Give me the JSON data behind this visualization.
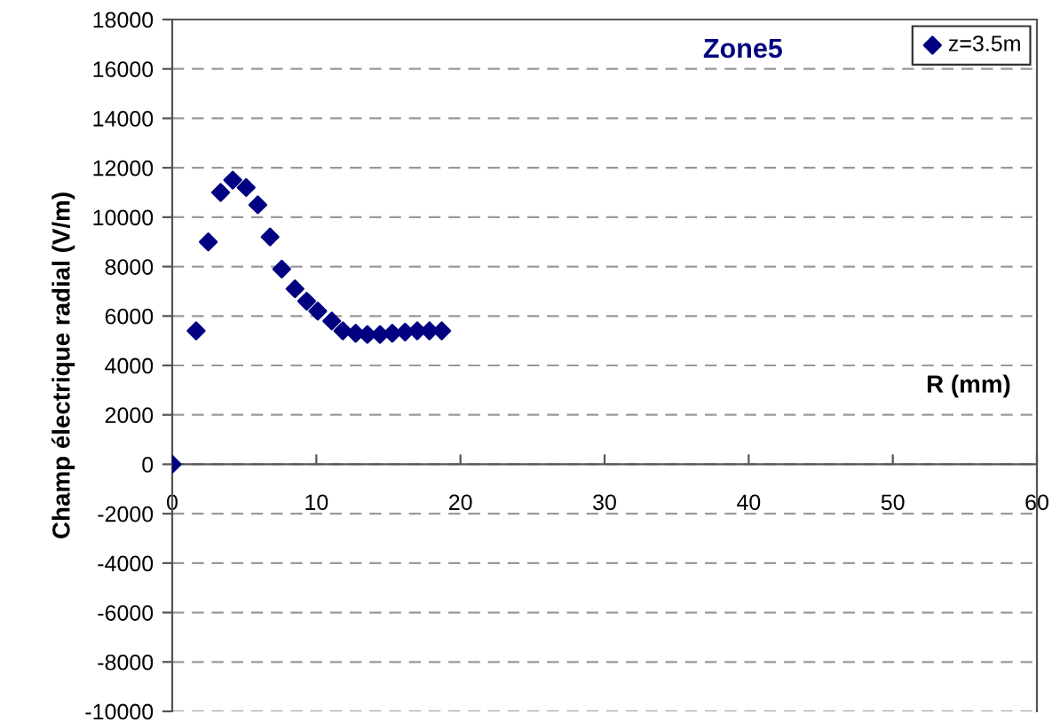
{
  "chart_data": {
    "type": "scatter",
    "title": "Zone5",
    "xlabel": "R (mm)",
    "ylabel": "Champ électrique radial (V/m)",
    "x": [
      0,
      1.66,
      2.5,
      3.36,
      4.2,
      5.13,
      5.94,
      6.79,
      7.6,
      8.52,
      9.33,
      10.1,
      11.07,
      11.84,
      12.73,
      13.54,
      14.42,
      15.27,
      16.16,
      17.0,
      17.85,
      18.7
    ],
    "series": [
      {
        "name": "z=3.5m",
        "color": "#000080",
        "values": [
          0,
          5400,
          9000,
          11000,
          11500,
          11200,
          10500,
          9200,
          7900,
          7100,
          6600,
          6200,
          5800,
          5400,
          5300,
          5250,
          5250,
          5300,
          5350,
          5400,
          5400,
          5400
        ]
      }
    ],
    "xlim": [
      0,
      60
    ],
    "xticks": [
      0,
      10,
      20,
      30,
      40,
      50,
      60
    ],
    "ylim": [
      -10000,
      18000
    ],
    "yticks": [
      -10000,
      -8000,
      -6000,
      -4000,
      -2000,
      0,
      2000,
      4000,
      6000,
      8000,
      10000,
      12000,
      14000,
      16000,
      18000
    ],
    "grid": "y",
    "legend": "top right",
    "marker": "diamond"
  }
}
